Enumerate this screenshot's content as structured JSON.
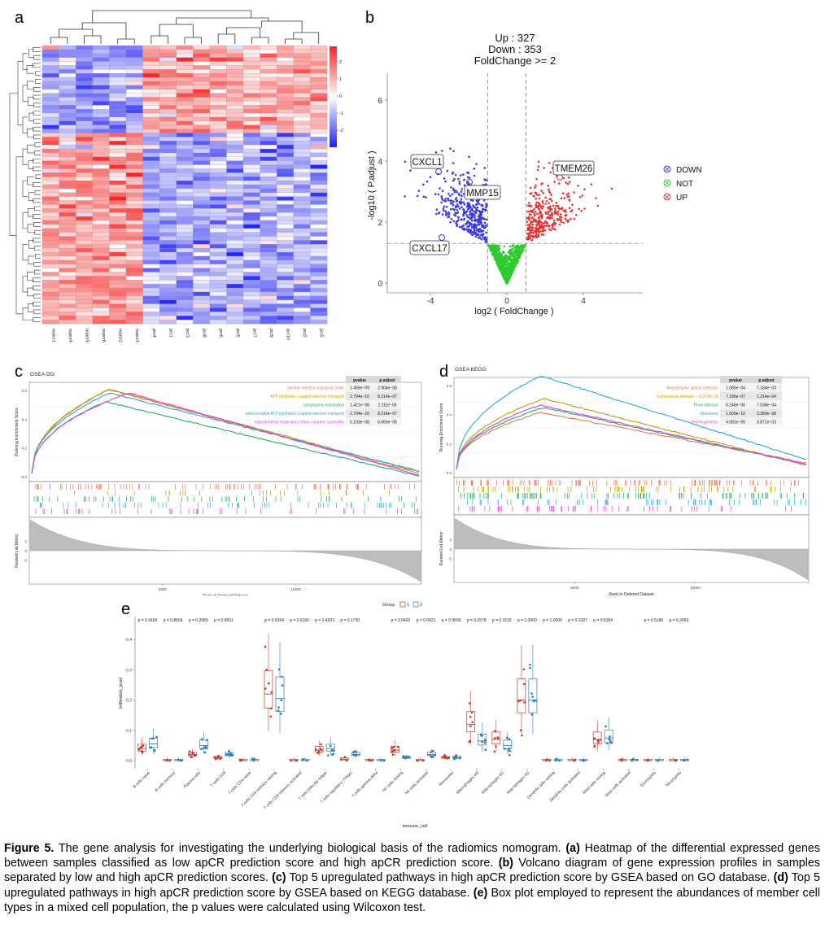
{
  "panels": {
    "a": "a",
    "b": "b",
    "c": "c",
    "d": "d",
    "e": "e"
  },
  "heatmap": {
    "samples": [
      "nopcr1",
      "nopcr4",
      "nopcr5",
      "nopcr6",
      "nopcr2",
      "nopcr3",
      "pcr4",
      "pcr1",
      "pcr3",
      "pcr8",
      "pcr6",
      "pcr5",
      "pcr7",
      "pcr9",
      "pcr10",
      "pcr2",
      "pcr5"
    ],
    "scale_ticks": [
      "2",
      "1",
      "0",
      "-1",
      "-2"
    ],
    "colors": {
      "high": "#ff2020",
      "mid": "#ffffff",
      "low": "#2020ff"
    }
  },
  "volcano": {
    "header": [
      "Up :  327",
      "Down : 353",
      "FoldChange >= 2"
    ],
    "xlabel": "log2 ( FoldChange )",
    "ylabel": "-log10 ( P.adjust )",
    "xticks": [
      "-4",
      "0",
      "4"
    ],
    "yticks": [
      "0",
      "2",
      "4",
      "6"
    ],
    "legend": [
      {
        "label": "DOWN",
        "color": "#3a3ae0"
      },
      {
        "label": "NOT",
        "color": "#2ecc2e"
      },
      {
        "label": "UP",
        "color": "#e83232"
      }
    ],
    "genes": [
      "CXCL1",
      "MMP15",
      "CXCL17",
      "TMEM26"
    ]
  },
  "gsea_go": {
    "title": "GSEA GO",
    "ylabel_top": "Running Enrichment Score",
    "ylabel_bottom": "Ranked List Metric",
    "xlabel": "Rank in Ordered Dataset",
    "xticks": [
      "5000",
      "10000"
    ],
    "yticks_top": [
      "0.6",
      "0.4",
      "0.2",
      "0.0"
    ],
    "yticks_bottom": [
      "5",
      "0",
      "-5"
    ],
    "col_headers": [
      "pvalue",
      "p.adjust"
    ],
    "rows": [
      {
        "name": "aerobic electron transport chain",
        "pvalue": "1.456e−09",
        "padj": "2.904e−06",
        "color": "#e8785a"
      },
      {
        "name": "ATP synthesis coupled electron transport",
        "pvalue": "2.794e−10",
        "padj": "8.214e−07",
        "color": "#b8a200"
      },
      {
        "name": "cytoplasmic translation",
        "pvalue": "1.421e−08",
        "padj": "2.111e−05",
        "color": "#22aa66"
      },
      {
        "name": "mitochondrial ATP synthesis coupled electron transport",
        "pvalue": "2.704e−10",
        "padj": "8.214e−07",
        "color": "#22a8d8"
      },
      {
        "name": "mitochondrial respiratory chain complex assembly",
        "pvalue": "5.103e−08",
        "padj": "6.066e−06",
        "color": "#e040e0"
      }
    ]
  },
  "gsea_kegg": {
    "title": "GSEA KEGG",
    "ylabel_top": "Running Enrichment Score",
    "ylabel_bottom": "Ranked List Metric",
    "xlabel": "Rank in Ordered Dataset",
    "xticks": [
      "5000",
      "10000"
    ],
    "yticks_top": [
      "0.6",
      "0.4",
      "0.2",
      "0.0"
    ],
    "yticks_bottom": [
      "5",
      "0",
      "-5"
    ],
    "col_headers": [
      "pvalue",
      "p.adjust"
    ],
    "rows": [
      {
        "name": "Amyotrophic lateral sclerosis",
        "pvalue": "1.085e−04",
        "padj": "7.334e−03",
        "color": "#e8785a"
      },
      {
        "name": "Coronavirus disease − COVID−19",
        "pvalue": "7.186e−07",
        "padj": "1.214e−04",
        "color": "#b8a200"
      },
      {
        "name": "Prion disease",
        "pvalue": "6.248e−06",
        "padj": "7.038e−04",
        "color": "#22aa66"
      },
      {
        "name": "Ribosome",
        "pvalue": "1.000e−10",
        "padj": "3.380e−08",
        "color": "#22a8d8"
      },
      {
        "name": "Thermogenesis",
        "pvalue": "4.581e−05",
        "padj": "3.871e−03",
        "color": "#e040e0"
      }
    ]
  },
  "boxplot": {
    "ylabel": "Infiltration_level",
    "xlabel": "immune_cell",
    "legend_title": "Group",
    "groups": [
      {
        "name": "1",
        "color": "#c0392b"
      },
      {
        "name": "2",
        "color": "#2a7ab8"
      }
    ],
    "yticks": [
      "0.0",
      "0.1",
      "0.2",
      "0.3",
      "0.4"
    ],
    "chart_data": {
      "type": "box",
      "cells": [
        {
          "name": "B cells naive",
          "p": "p = 0.4156",
          "g1": 0.04,
          "g2": 0.055
        },
        {
          "name": "B cells memory",
          "p": "p = 0.8504",
          "g1": 0.0,
          "g2": 0.0
        },
        {
          "name": "Plasma cells",
          "p": "p = 0.2089",
          "g1": 0.02,
          "g2": 0.05
        },
        {
          "name": "T cells CD8",
          "p": "p = 0.9561",
          "g1": 0.01,
          "g2": 0.02
        },
        {
          "name": "T cells CD4 naive",
          "p": "",
          "g1": 0.0,
          "g2": 0.0
        },
        {
          "name": "T cells CD4 memory resting",
          "p": "p = 0.6354",
          "g1": 0.22,
          "g2": 0.205
        },
        {
          "name": "T cells CD4 memory activated",
          "p": "p = 0.6160",
          "g1": 0.0,
          "g2": 0.0
        },
        {
          "name": "T cells follicular helper",
          "p": "p = 0.4923",
          "g1": 0.035,
          "g2": 0.04
        },
        {
          "name": "T cells regulatory (Tregs)",
          "p": "p = 0.1730",
          "g1": 0.005,
          "g2": 0.02
        },
        {
          "name": "T cells gamma delta",
          "p": "",
          "g1": 0.0,
          "g2": 0.0
        },
        {
          "name": "NK cells resting",
          "p": "p = 0.0420",
          "g1": 0.035,
          "g2": 0.01
        },
        {
          "name": "NK cells activated",
          "p": "p = 0.0021",
          "g1": 0.0,
          "g2": 0.02
        },
        {
          "name": "Monocytes",
          "p": "p = 0.9556",
          "g1": 0.01,
          "g2": 0.01
        },
        {
          "name": "Macrophages M0",
          "p": "p = 0.0578",
          "g1": 0.12,
          "g2": 0.065
        },
        {
          "name": "Macrophages M1",
          "p": "p = 0.3132",
          "g1": 0.07,
          "g2": 0.05
        },
        {
          "name": "Macrophages M2",
          "p": "p = 1.0000",
          "g1": 0.2,
          "g2": 0.2
        },
        {
          "name": "Dendritic cells resting",
          "p": "p = 1.0000",
          "g1": 0.0,
          "g2": 0.0
        },
        {
          "name": "Dendritic cells activated",
          "p": "p = 0.2327",
          "g1": 0.0,
          "g2": 0.0
        },
        {
          "name": "Mast cells resting",
          "p": "p = 0.5354",
          "g1": 0.07,
          "g2": 0.075
        },
        {
          "name": "Mast cells activated",
          "p": "",
          "g1": 0.0,
          "g2": 0.0
        },
        {
          "name": "Eosinophils",
          "p": "p = 0.5186",
          "g1": 0.0,
          "g2": 0.0
        },
        {
          "name": "Neutrophils",
          "p": "p = 0.2453",
          "g1": 0.0,
          "g2": 0.0
        }
      ]
    }
  },
  "caption": {
    "label": "Figure 5.",
    "intro": " The gene analysis for investigating the underlying biological basis of the radiomics nomogram. ",
    "a_tag": "(a)",
    "a_text": " Heatmap of the differential expressed genes between samples classified as low apCR prediction score and high apCR prediction score. ",
    "b_tag": "(b)",
    "b_text": " Volcano diagram of gene expression profiles in samples separated by low and high apCR prediction scores. ",
    "c_tag": "(c)",
    "c_text": " Top 5 upregulated pathways in high apCR prediction score by GSEA based on GO database. ",
    "d_tag": "(d)",
    "d_text": " Top 5 upregulated pathways in high apCR prediction score by GSEA based on KEGG database. ",
    "e_tag": "(e)",
    "e_text": " Box plot employed to represent the abundances of member cell types in a mixed cell population, the p values were calculated using Wilcoxon test."
  }
}
